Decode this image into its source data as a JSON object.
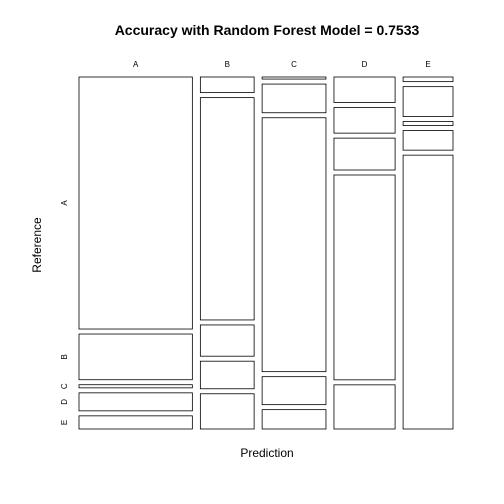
{
  "chart_data": {
    "type": "mosaic",
    "title": "Accuracy with Random Forest Model = 0.7533",
    "xlabel": "Prediction",
    "ylabel": "Reference",
    "prediction_levels": [
      "A",
      "B",
      "C",
      "D",
      "E"
    ],
    "reference_levels": [
      "A",
      "B",
      "C",
      "D",
      "E"
    ],
    "column_widths": [
      0.293,
      0.139,
      0.165,
      0.158,
      0.129
    ],
    "segments": [
      [
        0.728,
        0.132,
        0.009,
        0.052,
        0.038
      ],
      [
        0.047,
        0.669,
        0.094,
        0.083,
        0.106
      ],
      [
        0.006,
        0.083,
        0.735,
        0.081,
        0.056
      ],
      [
        0.077,
        0.077,
        0.096,
        0.617,
        0.133
      ],
      [
        0.014,
        0.09,
        0.012,
        0.059,
        0.824
      ]
    ]
  }
}
